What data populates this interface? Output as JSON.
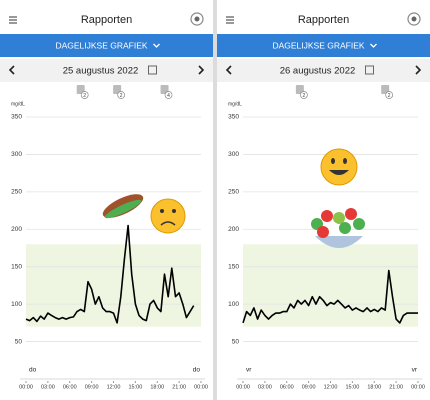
{
  "panels": [
    {
      "header": {
        "title": "Rapporten",
        "tab": "DAGELIJKSE GRAFIEK",
        "date": "25 augustus 2022"
      },
      "events": [
        "2",
        "2",
        "4"
      ],
      "chart": {
        "type": "line",
        "y_unit": "mg/dL",
        "day_labels": [
          "do",
          "do"
        ],
        "x": [
          0,
          0.5,
          1,
          1.5,
          2,
          2.5,
          3,
          3.5,
          4,
          4.5,
          5,
          5.5,
          6,
          6.5,
          7,
          7.5,
          8,
          8.5,
          9,
          9.5,
          10,
          10.5,
          11,
          11.5,
          12,
          12.5,
          13,
          13.5,
          14,
          14.5,
          15,
          15.5,
          16,
          16.5,
          17,
          17.5,
          18,
          18.5,
          19,
          19.5,
          20,
          20.5,
          21,
          21.5,
          22,
          22.5,
          23
        ],
        "values": [
          80,
          78,
          82,
          77,
          84,
          80,
          88,
          85,
          82,
          80,
          82,
          80,
          82,
          83,
          90,
          93,
          90,
          130,
          120,
          100,
          110,
          95,
          90,
          90,
          88,
          75,
          110,
          160,
          205,
          140,
          100,
          85,
          80,
          78,
          100,
          105,
          95,
          90,
          140,
          110,
          148,
          110,
          115,
          100,
          82,
          90,
          98
        ],
        "color": "#000000",
        "target": [
          70,
          180
        ],
        "target_color": "#eef5e0",
        "xlim": [
          0,
          24
        ],
        "ylim": [
          0,
          350
        ],
        "yticks": [
          50,
          100,
          150,
          200,
          250,
          300,
          350
        ],
        "xticks": [
          {
            "value": 0,
            "label": "00:00"
          },
          {
            "value": 3,
            "label": "03:00"
          },
          {
            "value": 6,
            "label": "06:00"
          },
          {
            "value": 9,
            "label": "09:00"
          },
          {
            "value": 12,
            "label": "12:00"
          },
          {
            "value": 15,
            "label": "15:00"
          },
          {
            "value": 18,
            "label": "18:00"
          },
          {
            "value": 21,
            "label": "21:00"
          },
          {
            "value": 24,
            "label": "00:00"
          }
        ]
      }
    },
    {
      "header": {
        "title": "Rapporten",
        "tab": "DAGELIJKSE GRAFIEK",
        "date": "26 augustus 2022"
      },
      "events": [
        "2",
        "2"
      ],
      "chart": {
        "type": "line",
        "y_unit": "mg/dL",
        "day_labels": [
          "vr",
          "vr"
        ],
        "x": [
          0,
          0.5,
          1,
          1.5,
          2,
          2.5,
          3,
          3.5,
          4,
          4.5,
          5,
          5.5,
          6,
          6.5,
          7,
          7.5,
          8,
          8.5,
          9,
          9.5,
          10,
          10.5,
          11,
          11.5,
          12,
          12.5,
          13,
          13.5,
          14,
          14.5,
          15,
          15.5,
          16,
          16.5,
          17,
          17.5,
          18,
          18.5,
          19,
          19.5,
          20,
          20.5,
          21,
          21.5,
          22,
          22.5,
          23,
          24
        ],
        "values": [
          75,
          90,
          85,
          95,
          80,
          92,
          85,
          80,
          85,
          88,
          88,
          90,
          90,
          100,
          95,
          105,
          100,
          105,
          98,
          110,
          100,
          110,
          105,
          98,
          102,
          100,
          105,
          100,
          95,
          98,
          92,
          95,
          92,
          90,
          95,
          90,
          93,
          90,
          95,
          92,
          145,
          110,
          80,
          75,
          85,
          88,
          88,
          88
        ],
        "color": "#000000",
        "target": [
          70,
          180
        ],
        "target_color": "#eef5e0",
        "xlim": [
          0,
          24
        ],
        "ylim": [
          0,
          350
        ],
        "yticks": [
          50,
          100,
          150,
          200,
          250,
          300,
          350
        ],
        "xticks": [
          {
            "value": 0,
            "label": "00:00"
          },
          {
            "value": 3,
            "label": "03:00"
          },
          {
            "value": 6,
            "label": "06:00"
          },
          {
            "value": 9,
            "label": "09:00"
          },
          {
            "value": 12,
            "label": "12:00"
          },
          {
            "value": 15,
            "label": "15:00"
          },
          {
            "value": 18,
            "label": "18:00"
          },
          {
            "value": 21,
            "label": "21:00"
          },
          {
            "value": 24,
            "label": "00:00"
          }
        ]
      }
    }
  ]
}
